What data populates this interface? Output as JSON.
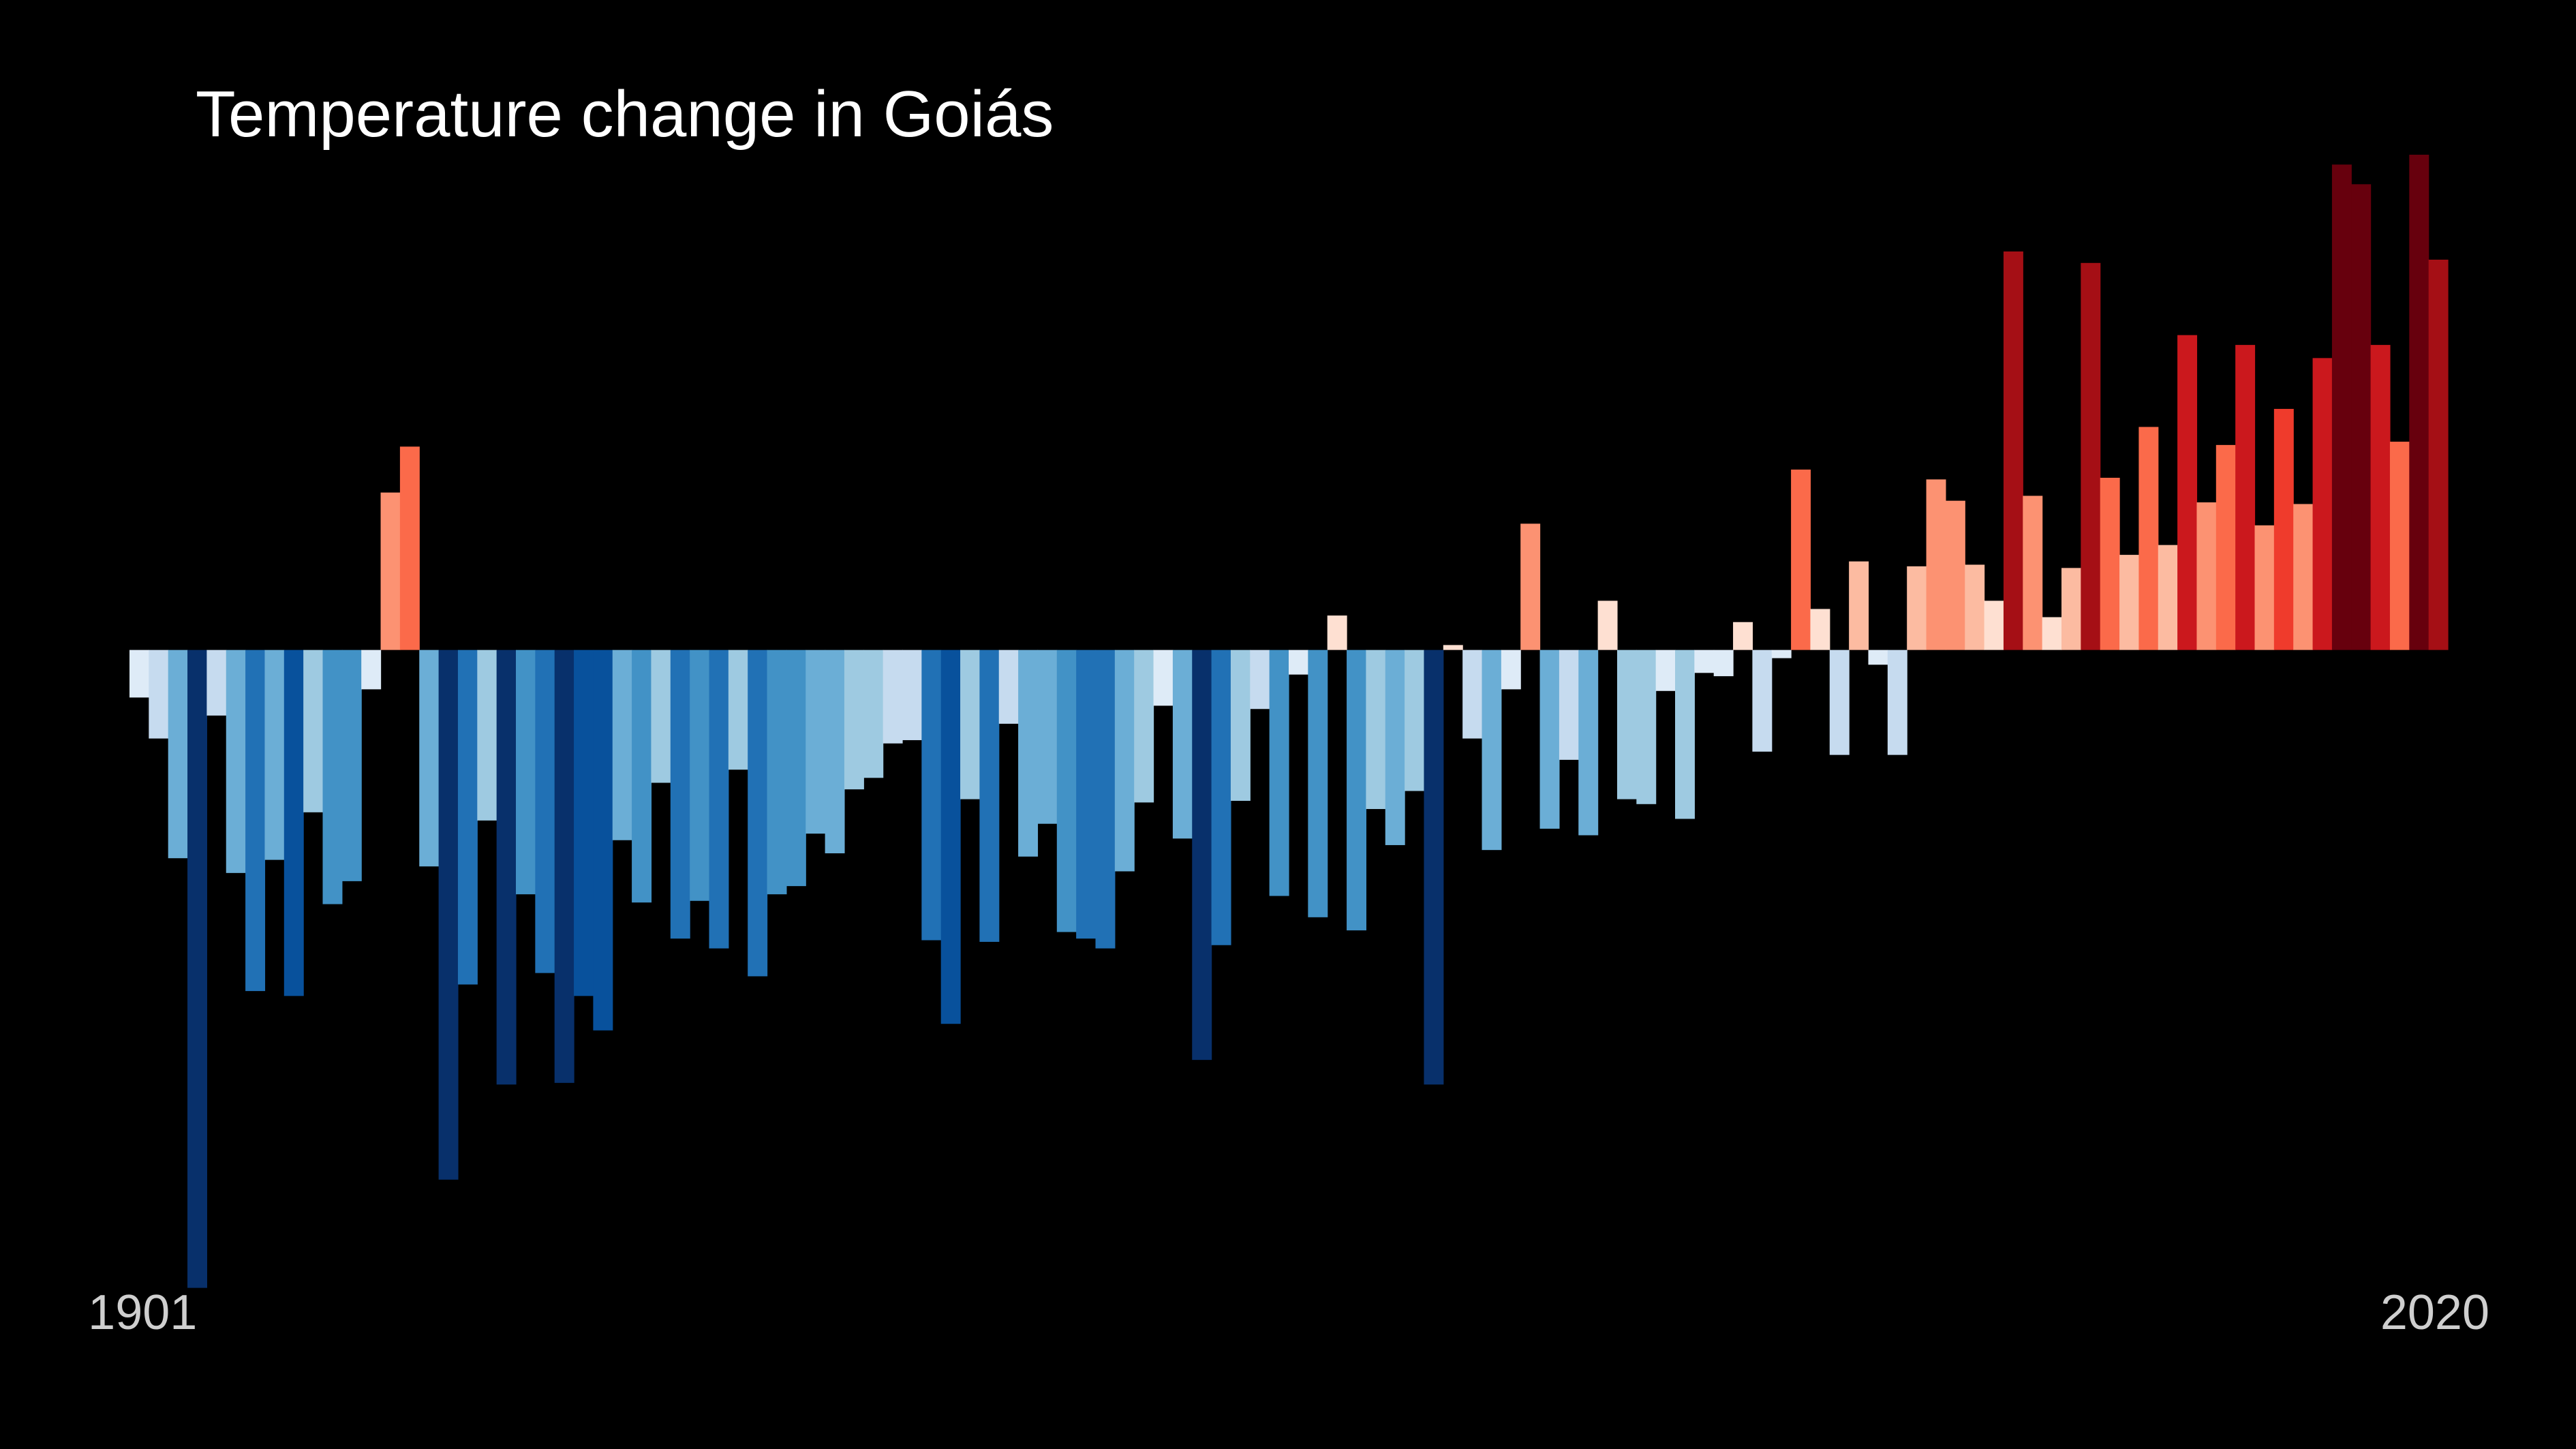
{
  "chart_data": {
    "type": "bar",
    "title": "Temperature change in Goiás",
    "categories": [
      "1901",
      null,
      null,
      null,
      null,
      null,
      null,
      null,
      null,
      null,
      null,
      null,
      null,
      null,
      null,
      null,
      null,
      null,
      null,
      null,
      null,
      null,
      null,
      null,
      null,
      null,
      null,
      null,
      null,
      null,
      null,
      null,
      null,
      null,
      null,
      null,
      null,
      null,
      null,
      null,
      null,
      null,
      null,
      null,
      null,
      null,
      null,
      null,
      null,
      null,
      null,
      null,
      null,
      null,
      null,
      null,
      null,
      null,
      null,
      null,
      null,
      null,
      null,
      null,
      null,
      null,
      null,
      null,
      null,
      null,
      null,
      null,
      null,
      null,
      null,
      null,
      null,
      null,
      null,
      null,
      null,
      null,
      null,
      null,
      null,
      null,
      null,
      null,
      null,
      null,
      null,
      null,
      null,
      null,
      null,
      null,
      null,
      null,
      null,
      null,
      null,
      null,
      null,
      null,
      null,
      null,
      null,
      null,
      null,
      null,
      null,
      null,
      null,
      null,
      null,
      null,
      null,
      null,
      null,
      "2020"
    ],
    "values": [
      -0.29,
      -0.54,
      -1.27,
      -3.89,
      -0.4,
      -1.36,
      -2.08,
      -1.28,
      -2.11,
      -0.99,
      -1.55,
      -1.41,
      -0.24,
      0.96,
      1.24,
      -1.32,
      -3.23,
      -2.04,
      -1.04,
      -2.65,
      -1.49,
      -1.97,
      -2.64,
      -2.11,
      -2.32,
      -1.16,
      -1.54,
      -0.81,
      -1.76,
      -1.53,
      -1.82,
      -0.73,
      -1.99,
      -1.49,
      -1.44,
      -1.12,
      -1.24,
      -0.85,
      -0.78,
      -0.57,
      -0.55,
      -1.77,
      -2.28,
      -0.91,
      -1.78,
      -0.45,
      -1.26,
      -1.06,
      -1.72,
      -1.76,
      -1.82,
      -1.35,
      -0.93,
      -0.34,
      -1.15,
      -2.5,
      -1.8,
      -0.92,
      -0.36,
      -1.5,
      -0.15,
      -1.63,
      0.21,
      -1.71,
      -0.97,
      -1.19,
      -0.86,
      -2.65,
      0.03,
      -0.54,
      -1.22,
      -0.24,
      0.77,
      -1.09,
      -0.67,
      -1.13,
      0.3,
      -0.91,
      -0.94,
      -0.25,
      -1.03,
      -0.14,
      -0.16,
      0.17,
      -0.62,
      -0.05,
      1.1,
      0.25,
      -0.64,
      0.54,
      -0.09,
      -0.64,
      0.51,
      1.04,
      0.91,
      0.52,
      0.3,
      2.43,
      0.94,
      0.2,
      0.5,
      2.36,
      1.05,
      0.58,
      1.36,
      0.64,
      1.92,
      0.9,
      1.25,
      1.86,
      0.76,
      1.47,
      0.89,
      1.78,
      2.96,
      2.84,
      1.86,
      1.27,
      3.02,
      2.38
    ],
    "ylim": [
      -3.9,
      3.02
    ],
    "colormap": [
      "#08306b",
      "#08519c",
      "#2171b5",
      "#4292c6",
      "#6baed6",
      "#9ecae1",
      "#c6dbef",
      "#deebf7",
      "#fee0d2",
      "#fcbba1",
      "#fc9272",
      "#fb6a4a",
      "#ef3b2c",
      "#cb181d",
      "#a50f15",
      "#67000d"
    ],
    "clim": [
      -2.8,
      2.8
    ]
  }
}
